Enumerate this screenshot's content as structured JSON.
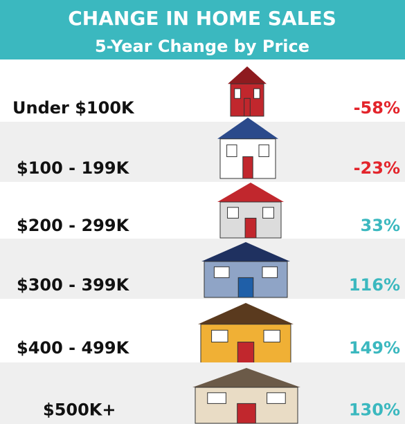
{
  "header": {
    "title": "CHANGE IN HOME SALES",
    "subtitle": "5-Year Change by Price"
  },
  "rows": [
    {
      "label": "Under $100K",
      "change": "-58%",
      "color": "#e3242b"
    },
    {
      "label": "$100 - 199K",
      "change": "-23%",
      "color": "#e3242b"
    },
    {
      "label": "$200 - 299K",
      "change": "33%",
      "color": "#3bb8bf"
    },
    {
      "label": "$300 - 399K",
      "change": "116%",
      "color": "#3bb8bf"
    },
    {
      "label": "$400 - 499K",
      "change": "149%",
      "color": "#3bb8bf"
    },
    {
      "label": "$500K+",
      "change": "130%",
      "color": "#3bb8bf"
    }
  ]
}
